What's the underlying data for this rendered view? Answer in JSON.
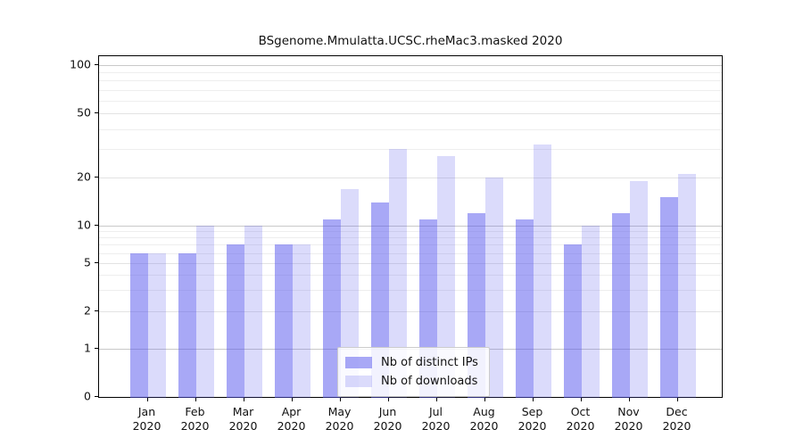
{
  "title": "BSgenome.Mmulatta.UCSC.rheMac3.masked 2020",
  "chart_data": {
    "type": "bar",
    "categories": [
      "Jan",
      "Feb",
      "Mar",
      "Apr",
      "May",
      "Jun",
      "Jul",
      "Aug",
      "Sep",
      "Oct",
      "Nov",
      "Dec"
    ],
    "category_year": "2020",
    "series": [
      {
        "name": "Nb of distinct IPs",
        "color": "rgba(85,85,238,0.51)",
        "color_hex": "#A8A8F0",
        "values": [
          6,
          6,
          7,
          7,
          11,
          14,
          11,
          12,
          11,
          7,
          12,
          15
        ]
      },
      {
        "name": "Nb of downloads",
        "color": "rgba(85,85,238,0.21)",
        "color_hex": "#DCDCF8",
        "values": [
          6,
          10,
          10,
          7,
          17,
          30,
          27,
          20,
          32,
          10,
          19,
          21
        ]
      }
    ],
    "title": "BSgenome.Mmulatta.UCSC.rheMac3.masked 2020",
    "xlabel": "",
    "ylabel": "",
    "yscale": "pseudo-log",
    "yticks": [
      0,
      1,
      2,
      5,
      10,
      20,
      50,
      100
    ],
    "minor_gridlines": [
      2,
      3,
      4,
      5,
      6,
      7,
      8,
      9,
      20,
      30,
      40,
      50,
      60,
      70,
      80,
      90
    ],
    "decade_gridlines": [
      1,
      10,
      100
    ],
    "ylim": [
      0,
      110
    ],
    "grid": true,
    "legend_position": "lower center",
    "colors": {
      "axis": "#000000",
      "decade_grid": "#c9c9c9",
      "minor_grid": "#eeeeee",
      "labeled_grid": "#e3e3e3",
      "text": "#111111",
      "legend_border": "#cccccc"
    }
  }
}
